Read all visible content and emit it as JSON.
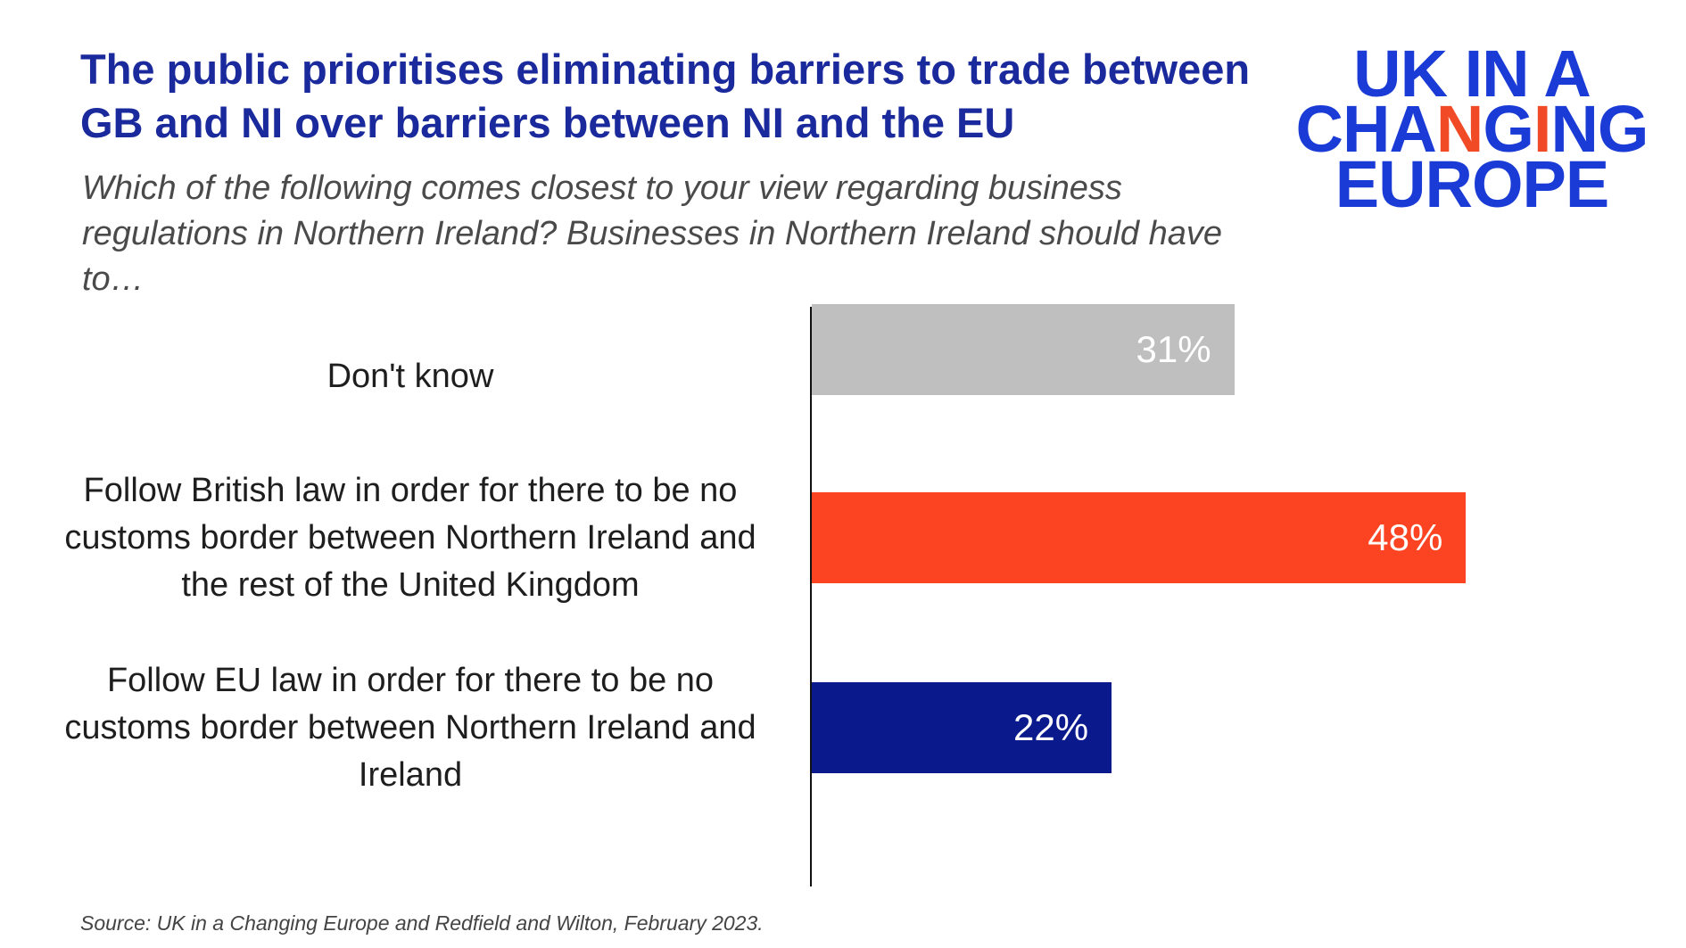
{
  "header": {
    "title": "The public prioritises eliminating barriers to trade between GB and NI over barriers between NI and the EU",
    "subtitle": "Which of the following comes closest to your view regarding business regulations in Northern Ireland? Businesses in Northern Ireland should have to…"
  },
  "logo": {
    "line1": "UK IN A",
    "line2_a": "CHA",
    "line2_b": "N",
    "line2_c": "G",
    "line2_d": "I",
    "line2_e": "NG",
    "line3": "EUROPE",
    "color": "#1a3bd6",
    "accent_color": "#f04a26"
  },
  "chart_data": {
    "type": "bar",
    "orientation": "horizontal",
    "categories": [
      "Don't know",
      "Follow British law in order for there to be no customs border between Northern Ireland and the rest of the United Kingdom",
      "Follow EU law in order for there to be no customs border between Northern Ireland and Ireland"
    ],
    "values": [
      31,
      48,
      22
    ],
    "value_labels": [
      "31%",
      "48%",
      "22%"
    ],
    "colors": [
      "#bfbfbf",
      "#fc4422",
      "#0a1a8c"
    ],
    "xlim": [
      0,
      54
    ],
    "grid": false,
    "legend": "none"
  },
  "footer": {
    "source": "Source: UK in a Changing Europe and Redfield and Wilton, February 2023."
  }
}
